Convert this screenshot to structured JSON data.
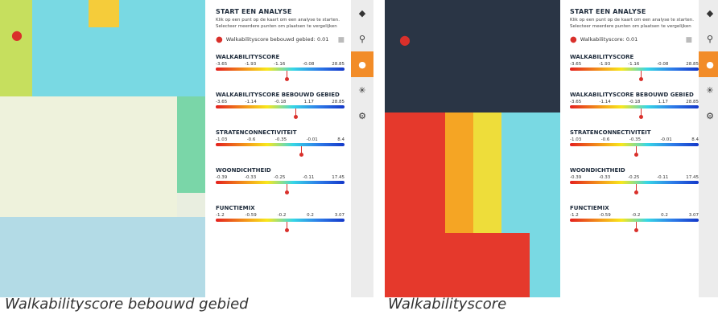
{
  "panels": [
    {
      "id": "bebouwd",
      "caption": "Walkabilityscore bebouwd gebied",
      "score_label": "Walkabilityscore bebouwd gebied: ",
      "score_value": "0.01",
      "marker_fractions": [
        0.55,
        0.62,
        0.66,
        0.55,
        0.55
      ]
    },
    {
      "id": "walkability",
      "caption": "Walkabilityscore",
      "score_label": "Walkabilityscore: ",
      "score_value": "0.01",
      "marker_fractions": [
        0.55,
        0.55,
        0.51,
        0.51,
        0.51
      ]
    }
  ],
  "start": {
    "title": "START EEN ANALYSE",
    "line1": "Klik op een punt op de kaart om een analyse te starten.",
    "line2": "Selecteer meerdere punten om plaatsen te vergelijken"
  },
  "metrics": [
    {
      "name": "WALKABILITYSCORE",
      "ticks": [
        "-3.65",
        "-1.93",
        "-1.16",
        "-0.08",
        "28.85"
      ]
    },
    {
      "name": "WALKABILITYSCORE BEBOUWD GEBIED",
      "ticks": [
        "-3.65",
        "-1.14",
        "-0.18",
        "1.17",
        "28.85"
      ]
    },
    {
      "name": "STRATENCONNECTIVITEIT",
      "ticks": [
        "-1.03",
        "-0.6",
        "-0.35",
        "-0.01",
        "8.4"
      ]
    },
    {
      "name": "WOONDICHTHEID",
      "ticks": [
        "-0.39",
        "-0.33",
        "-0.25",
        "-0.11",
        "17.45"
      ]
    },
    {
      "name": "FUNCTIEMIX",
      "ticks": [
        "-1.2",
        "-0.59",
        "-0.2",
        "0.2",
        "3.07"
      ]
    }
  ],
  "tools": [
    "layers-icon",
    "search-icon",
    "location-pin-icon",
    "snowflake-icon",
    "gear-icon"
  ],
  "colors": {
    "accent": "#f28c28",
    "pin": "#d9302b"
  }
}
